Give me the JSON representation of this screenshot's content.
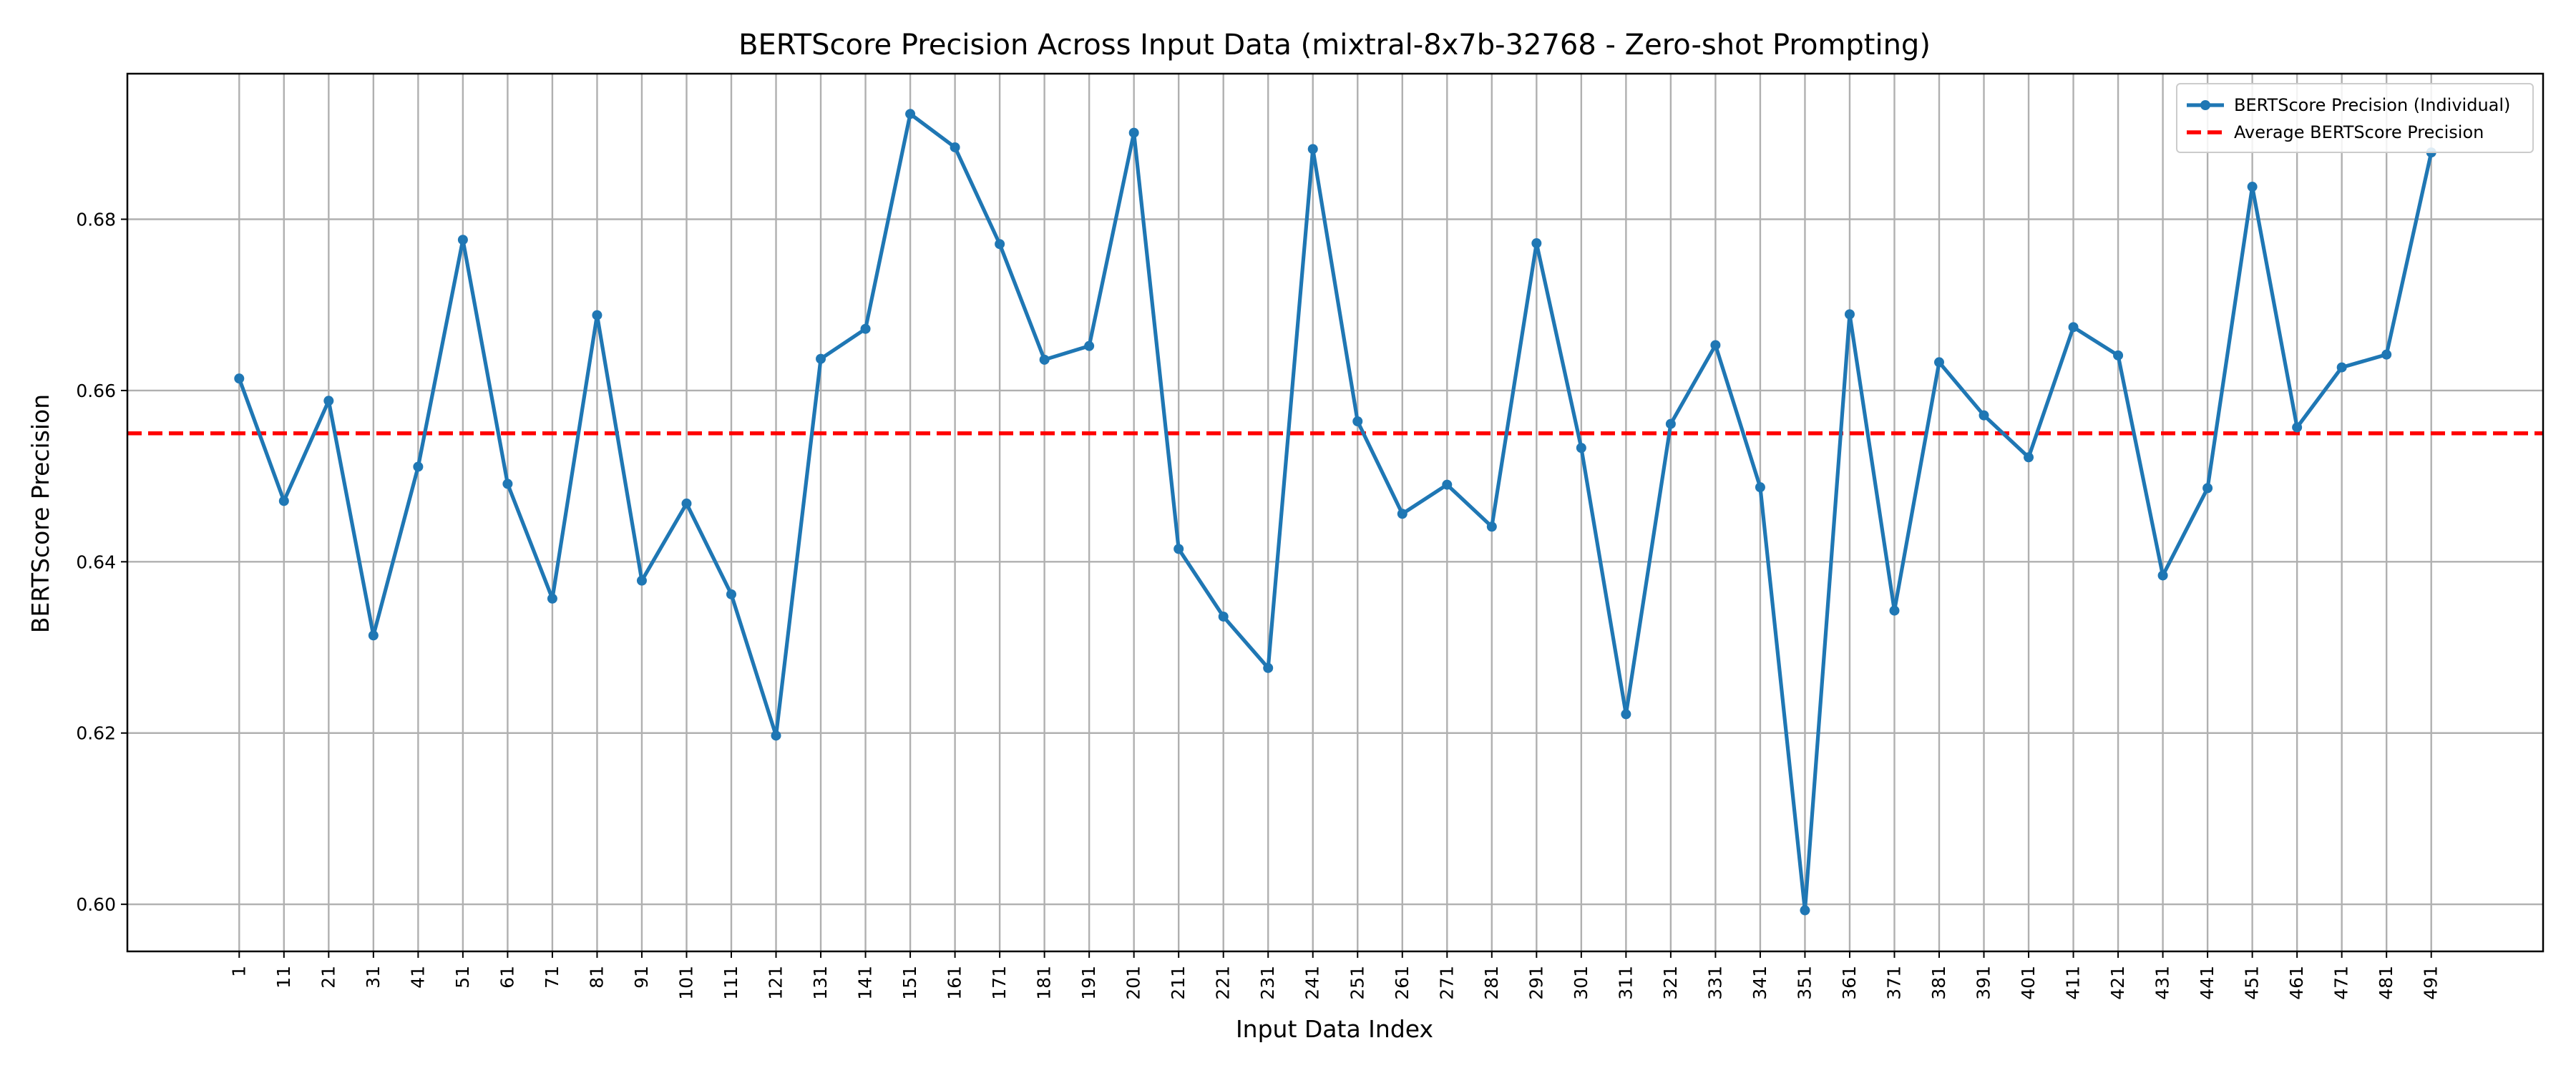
{
  "chart_data": {
    "type": "line",
    "title": "BERTScore Precision Across Input Data (mixtral-8x7b-32768 - Zero-shot Prompting)",
    "xlabel": "Input Data Index",
    "ylabel": "BERTScore Precision",
    "x": [
      1,
      11,
      21,
      31,
      41,
      51,
      61,
      71,
      81,
      91,
      101,
      111,
      121,
      131,
      141,
      151,
      161,
      171,
      181,
      191,
      201,
      211,
      221,
      231,
      241,
      251,
      261,
      271,
      281,
      291,
      301,
      311,
      321,
      331,
      341,
      351,
      361,
      371,
      381,
      391,
      401,
      411,
      421,
      431,
      441,
      451,
      461,
      471,
      481,
      491
    ],
    "x_tick_labels": [
      "1",
      "11",
      "21",
      "31",
      "41",
      "51",
      "61",
      "71",
      "81",
      "91",
      "101",
      "111",
      "121",
      "131",
      "141",
      "151",
      "161",
      "171",
      "181",
      "191",
      "201",
      "211",
      "221",
      "231",
      "241",
      "251",
      "261",
      "271",
      "281",
      "291",
      "301",
      "311",
      "321",
      "331",
      "341",
      "351",
      "361",
      "371",
      "381",
      "391",
      "401",
      "411",
      "421",
      "431",
      "441",
      "451",
      "461",
      "471",
      "481",
      "491"
    ],
    "y_ticks": [
      0.6,
      0.62,
      0.64,
      0.66,
      0.68
    ],
    "y_tick_labels": [
      "0.60",
      "0.62",
      "0.64",
      "0.66",
      "0.68"
    ],
    "xlim": [
      -24,
      516
    ],
    "ylim": [
      0.5945,
      0.697
    ],
    "grid": true,
    "legend_position": "top-right",
    "series": [
      {
        "name": "BERTScore Precision (Individual)",
        "style": "line-marker",
        "color": "#1f77b4",
        "values": [
          0.6614,
          0.6471,
          0.6588,
          0.6314,
          0.6511,
          0.6776,
          0.6491,
          0.6357,
          0.6688,
          0.6378,
          0.6468,
          0.6362,
          0.6197,
          0.6637,
          0.6672,
          0.6923,
          0.6884,
          0.6771,
          0.6636,
          0.6652,
          0.6901,
          0.6415,
          0.6336,
          0.6276,
          0.6882,
          0.6564,
          0.6456,
          0.649,
          0.6441,
          0.6772,
          0.6533,
          0.6222,
          0.6561,
          0.6653,
          0.6487,
          0.5993,
          0.6689,
          0.6343,
          0.6633,
          0.6571,
          0.6522,
          0.6674,
          0.6641,
          0.6384,
          0.6486,
          0.6838,
          0.6557,
          0.6627,
          0.6642,
          0.6878
        ]
      },
      {
        "name": "Average BERTScore Precision",
        "style": "dashed-hline",
        "color": "#ff0000",
        "value": 0.655
      }
    ]
  }
}
